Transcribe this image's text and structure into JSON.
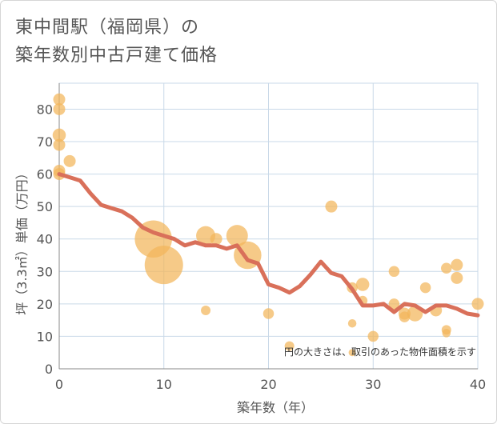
{
  "title_lines": [
    "東中間駅（福岡県）の",
    "築年数別中古戸建て価格"
  ],
  "chart_data": {
    "type": "scatter",
    "title": "東中間駅（福岡県）の築年数別中古戸建て価格",
    "xlabel": "築年数（年）",
    "ylabel": "坪（3.3㎡）単価（万円）",
    "xlim": [
      0,
      40
    ],
    "ylim": [
      0,
      88
    ],
    "xticks": [
      0,
      10,
      20,
      30,
      40
    ],
    "yticks": [
      0,
      10,
      20,
      30,
      40,
      50,
      60,
      70,
      80
    ],
    "grid": true,
    "annotation": "円の大きさは、取引のあった物件面積を示す",
    "colors": {
      "points": "#f2b65a",
      "line": "#d9705a",
      "grid": "#c9d9e8"
    },
    "points": [
      {
        "x": 0,
        "y": 83,
        "size": 1.0
      },
      {
        "x": 0,
        "y": 80,
        "size": 1.0
      },
      {
        "x": 0,
        "y": 72,
        "size": 1.1
      },
      {
        "x": 0,
        "y": 69,
        "size": 1.0
      },
      {
        "x": 0,
        "y": 61,
        "size": 1.0
      },
      {
        "x": 0,
        "y": 60,
        "size": 1.0
      },
      {
        "x": 1,
        "y": 64,
        "size": 1.0
      },
      {
        "x": 9,
        "y": 40,
        "size": 3.1
      },
      {
        "x": 10,
        "y": 32,
        "size": 3.2
      },
      {
        "x": 14,
        "y": 41,
        "size": 1.6
      },
      {
        "x": 14,
        "y": 18,
        "size": 0.8
      },
      {
        "x": 15,
        "y": 40,
        "size": 1.0
      },
      {
        "x": 17,
        "y": 41,
        "size": 1.8
      },
      {
        "x": 18,
        "y": 35,
        "size": 2.3
      },
      {
        "x": 20,
        "y": 17,
        "size": 0.9
      },
      {
        "x": 22,
        "y": 7,
        "size": 0.8
      },
      {
        "x": 26,
        "y": 50,
        "size": 1.0
      },
      {
        "x": 28,
        "y": 25,
        "size": 0.9
      },
      {
        "x": 28,
        "y": 14,
        "size": 0.7
      },
      {
        "x": 28,
        "y": 5,
        "size": 0.6
      },
      {
        "x": 29,
        "y": 26,
        "size": 1.1
      },
      {
        "x": 29,
        "y": 21,
        "size": 0.8
      },
      {
        "x": 30,
        "y": 10,
        "size": 0.9
      },
      {
        "x": 32,
        "y": 30,
        "size": 0.9
      },
      {
        "x": 32,
        "y": 20,
        "size": 0.9
      },
      {
        "x": 33,
        "y": 17,
        "size": 1.0
      },
      {
        "x": 33,
        "y": 16,
        "size": 0.9
      },
      {
        "x": 34,
        "y": 17,
        "size": 1.3
      },
      {
        "x": 35,
        "y": 25,
        "size": 0.9
      },
      {
        "x": 36,
        "y": 18,
        "size": 1.0
      },
      {
        "x": 37,
        "y": 31,
        "size": 0.9
      },
      {
        "x": 37,
        "y": 12,
        "size": 0.8
      },
      {
        "x": 37,
        "y": 11,
        "size": 0.7
      },
      {
        "x": 38,
        "y": 32,
        "size": 1.0
      },
      {
        "x": 38,
        "y": 28,
        "size": 1.0
      },
      {
        "x": 40,
        "y": 20,
        "size": 1.0
      }
    ],
    "trend": {
      "x": [
        0,
        1,
        2,
        3,
        4,
        5,
        6,
        7,
        8,
        9,
        10,
        11,
        12,
        13,
        14,
        15,
        16,
        17,
        18,
        19,
        20,
        21,
        22,
        23,
        24,
        25,
        26,
        27,
        28,
        29,
        30,
        31,
        32,
        33,
        34,
        35,
        36,
        37,
        38,
        39,
        40
      ],
      "y": [
        60,
        59,
        58,
        54,
        50.5,
        49.5,
        48.5,
        46.5,
        43.5,
        42,
        41,
        40,
        38,
        39,
        38,
        38,
        37,
        38,
        33.5,
        32.5,
        26,
        25,
        23.5,
        25.5,
        29,
        33,
        29.5,
        28.5,
        24.5,
        19.5,
        19.5,
        20,
        17.5,
        20,
        19.5,
        17.5,
        19.5,
        19.5,
        18.5,
        17,
        16.5
      ]
    }
  }
}
